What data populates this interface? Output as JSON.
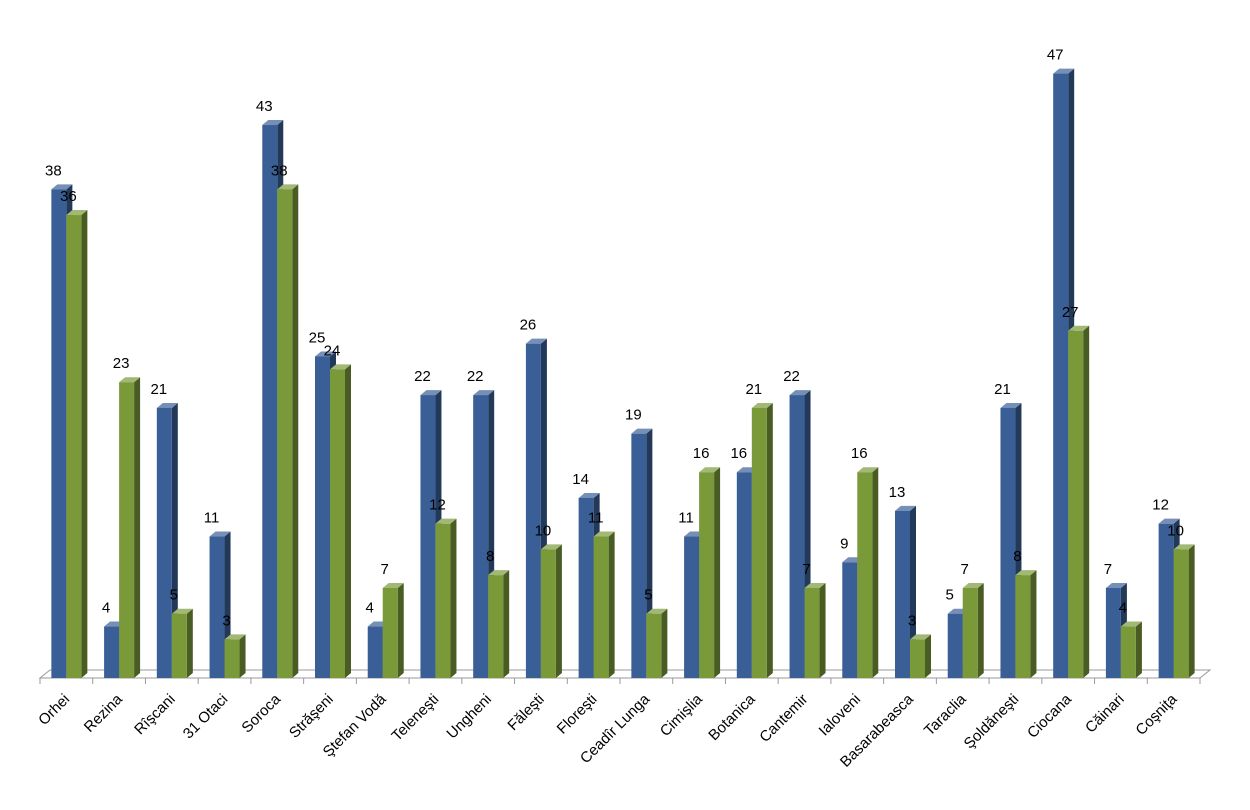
{
  "chart_data": {
    "type": "bar3d",
    "categories": [
      "Orhei",
      "Rezina",
      "Rîşcani",
      "31 Otaci",
      "Soroca",
      "Străşeni",
      "Ştefan Vodă",
      "Teleneşti",
      "Ungheni",
      "Făleşti",
      "Floreşti",
      "Ceadîr Lunga",
      "Cimişlia",
      "Botanica",
      "Cantemir",
      "Ialoveni",
      "Basarabeasca",
      "Taraclia",
      "Şoldăneşti",
      "Ciocana",
      "Căinari",
      "Coşniţa"
    ],
    "series": [
      {
        "color": "#3a5f96",
        "values": [
          38,
          4,
          21,
          11,
          43,
          25,
          4,
          22,
          22,
          26,
          14,
          19,
          11,
          16,
          22,
          9,
          13,
          5,
          21,
          47,
          7,
          12
        ]
      },
      {
        "color": "#7a9a3a",
        "values": [
          36,
          23,
          5,
          3,
          38,
          24,
          7,
          12,
          8,
          10,
          11,
          5,
          16,
          21,
          7,
          16,
          3,
          7,
          8,
          27,
          4,
          10
        ]
      }
    ],
    "ylim": [
      0,
      50
    ]
  }
}
